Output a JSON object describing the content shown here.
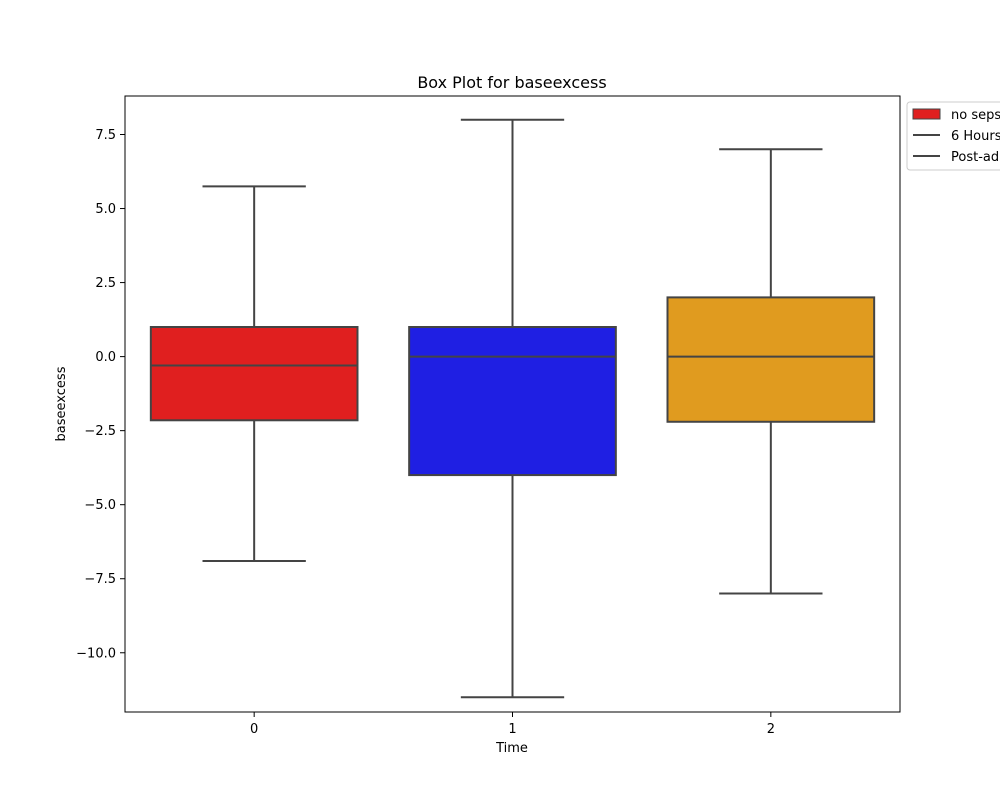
{
  "chart_data": {
    "type": "box",
    "title": "Box Plot for baseexcess",
    "xlabel": "Time",
    "ylabel": "baseexcess",
    "categories": [
      "0",
      "1",
      "2"
    ],
    "boxes": [
      {
        "category": "0",
        "color": "#e01f1f",
        "whisker_low": -6.9,
        "q1": -2.15,
        "median": -0.3,
        "q3": 1.0,
        "whisker_high": 5.75
      },
      {
        "category": "1",
        "color": "#1f1fe3",
        "whisker_low": -11.5,
        "q1": -4.0,
        "median": 0.0,
        "q3": 1.0,
        "whisker_high": 8.0
      },
      {
        "category": "2",
        "color": "#e09b1f",
        "whisker_low": -8.0,
        "q1": -2.2,
        "median": 0.0,
        "q3": 2.0,
        "whisker_high": 7.0
      }
    ],
    "ylim": [
      -12.0,
      8.8
    ],
    "yticks": [
      -10.0,
      -7.5,
      -5.0,
      -2.5,
      0.0,
      2.5,
      5.0,
      7.5
    ],
    "ytick_labels": [
      "−10.0",
      "−7.5",
      "−5.0",
      "−2.5",
      "0.0",
      "2.5",
      "5.0",
      "7.5"
    ],
    "grid": false,
    "legend": {
      "placement": "outside-top-right",
      "entries": [
        {
          "label": "no seps",
          "marker": "patch",
          "color": "#e01f1f"
        },
        {
          "label": "6 Hours",
          "marker": "line",
          "color": "#444444"
        },
        {
          "label": "Post-ad",
          "marker": "line",
          "color": "#444444"
        }
      ]
    },
    "line_color": "#444444"
  }
}
